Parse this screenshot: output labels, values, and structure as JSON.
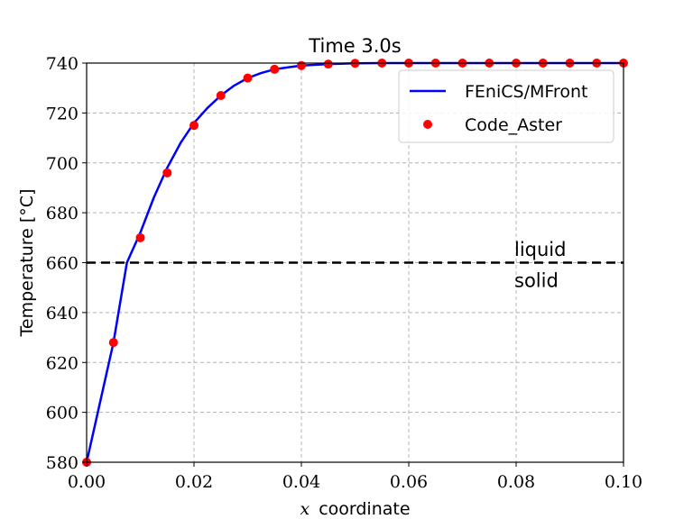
{
  "chart_data": {
    "type": "line",
    "title": "Time 3.0s",
    "xlabel_math": "x",
    "xlabel_text": "coordinate",
    "ylabel": "Temperature [°C]",
    "xlim": [
      0.0,
      0.1
    ],
    "ylim": [
      580,
      740
    ],
    "x_ticks": [
      0.0,
      0.02,
      0.04,
      0.06,
      0.08,
      0.1
    ],
    "x_tick_labels": [
      "0.00",
      "0.02",
      "0.04",
      "0.06",
      "0.08",
      "0.10"
    ],
    "y_ticks": [
      580,
      600,
      620,
      640,
      660,
      680,
      700,
      720,
      740
    ],
    "y_tick_labels": [
      "580",
      "600",
      "620",
      "640",
      "660",
      "680",
      "700",
      "720",
      "740"
    ],
    "grid": true,
    "legend_position": "top-right",
    "series": [
      {
        "name": "FEniCS/MFront",
        "style": "line",
        "color": "#0000ff",
        "x": [
          0.0,
          0.0025,
          0.005,
          0.0075,
          0.01,
          0.0125,
          0.015,
          0.0175,
          0.02,
          0.0225,
          0.025,
          0.0275,
          0.03,
          0.0325,
          0.035,
          0.0375,
          0.04,
          0.045,
          0.05,
          0.055,
          0.06,
          0.07,
          0.08,
          0.09,
          0.1
        ],
        "y": [
          580,
          604,
          628,
          660,
          672,
          686,
          698,
          708,
          716,
          722,
          727,
          731,
          734,
          736,
          737.5,
          738.3,
          739,
          739.6,
          739.9,
          740,
          740,
          740,
          740,
          740,
          740
        ]
      },
      {
        "name": "Code_Aster",
        "style": "markers",
        "color": "#ff0000",
        "x": [
          0.0,
          0.005,
          0.01,
          0.015,
          0.02,
          0.025,
          0.03,
          0.035,
          0.04,
          0.045,
          0.05,
          0.055,
          0.06,
          0.065,
          0.07,
          0.075,
          0.08,
          0.085,
          0.09,
          0.095,
          0.1
        ],
        "y": [
          580,
          628,
          670,
          696,
          715,
          727,
          734,
          737.5,
          739,
          739.6,
          739.9,
          740,
          740,
          740,
          740,
          740,
          740,
          740,
          740,
          740,
          740
        ]
      }
    ],
    "reference_line": {
      "y": 660,
      "color": "#000000",
      "style": "dashed"
    },
    "annotations": [
      {
        "text": "liquid",
        "x": 0.08,
        "y": 662
      },
      {
        "text": "solid",
        "x": 0.08,
        "y": 655
      }
    ]
  }
}
